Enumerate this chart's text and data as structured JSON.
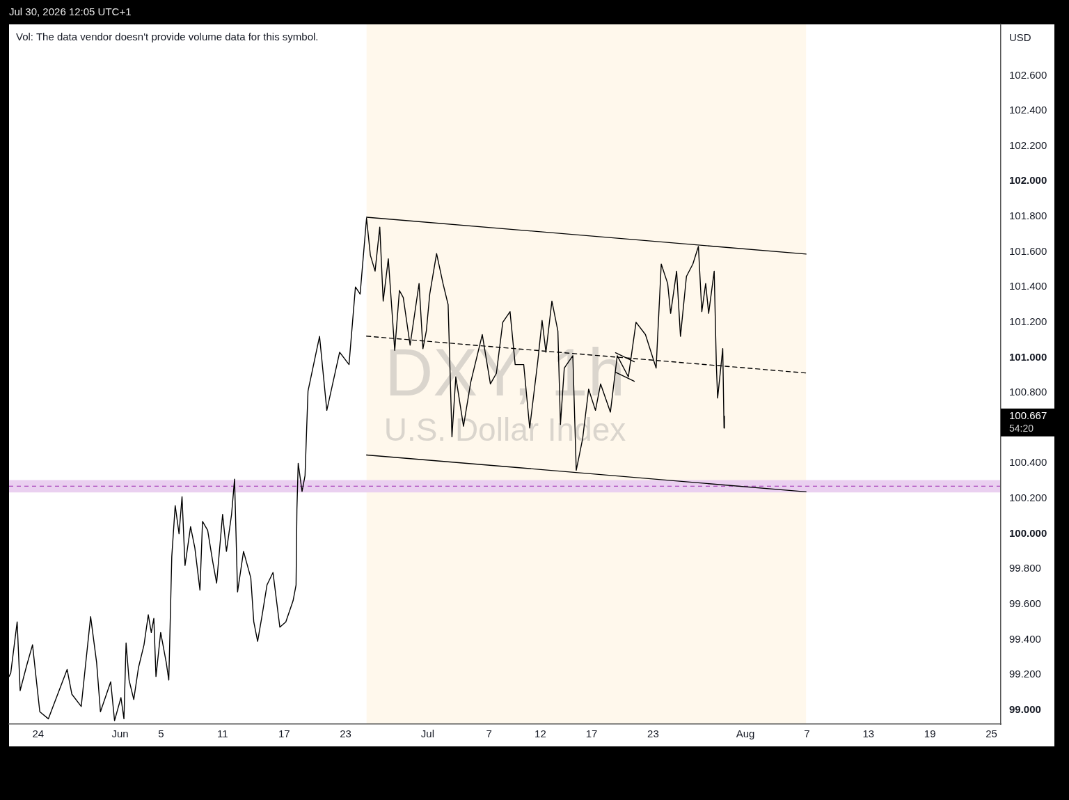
{
  "chart_data": {
    "type": "line",
    "title": "DXY, 1h",
    "subtitle": "U.S. Dollar Index",
    "ylabel": "USD",
    "annotations": [
      "Jul 30, 2026 12:05 UTC+1",
      "Vol: The data vendor doesn't provide volume data for this symbol.",
      "100.667",
      "54:20"
    ],
    "xlim": [
      "2026-05-21T04:00",
      "2026-08-25T22:00"
    ],
    "xticks": [
      {
        "value": "2026-05-24",
        "label": "24"
      },
      {
        "value": "2026-06-01",
        "label": "Jun"
      },
      {
        "value": "2026-06-05",
        "label": "5"
      },
      {
        "value": "2026-06-11",
        "label": "11"
      },
      {
        "value": "2026-06-17",
        "label": "17"
      },
      {
        "value": "2026-06-23",
        "label": "23"
      },
      {
        "value": "2026-07-01",
        "label": "Jul"
      },
      {
        "value": "2026-07-07",
        "label": "7"
      },
      {
        "value": "2026-07-12",
        "label": "12"
      },
      {
        "value": "2026-07-17",
        "label": "17"
      },
      {
        "value": "2026-07-23",
        "label": "23"
      },
      {
        "value": "2026-08-01",
        "label": "Aug"
      },
      {
        "value": "2026-08-07",
        "label": "7"
      },
      {
        "value": "2026-08-13",
        "label": "13"
      },
      {
        "value": "2026-08-19",
        "label": "19"
      },
      {
        "value": "2026-08-25",
        "label": "25"
      }
    ],
    "ylim": [
      98.92,
      102.89
    ],
    "yticks": [
      {
        "value": 99,
        "label": "99.000"
      },
      {
        "value": 99.2,
        "label": "99.200"
      },
      {
        "value": 99.4,
        "label": "99.400"
      },
      {
        "value": 99.6,
        "label": "99.600"
      },
      {
        "value": 99.8,
        "label": "99.800"
      },
      {
        "value": 100,
        "label": "100.000"
      },
      {
        "value": 100.2,
        "label": "100.200"
      },
      {
        "value": 100.4,
        "label": "100.400"
      },
      {
        "value": 100.8,
        "label": "100.800"
      },
      {
        "value": 101,
        "label": "101.000"
      },
      {
        "value": 101.2,
        "label": "101.200"
      },
      {
        "value": 101.4,
        "label": "101.400"
      },
      {
        "value": 101.6,
        "label": "101.600"
      },
      {
        "value": 101.8,
        "label": "101.800"
      },
      {
        "value": 102,
        "label": "102.000"
      },
      {
        "value": 102.2,
        "label": "102.200"
      },
      {
        "value": 102.4,
        "label": "102.400"
      },
      {
        "value": 102.6,
        "label": "102.600"
      }
    ],
    "bands": [
      {
        "axis": "x",
        "from": "2026-06-25T01:00",
        "to": "2026-08-06T22:00",
        "color": "#fff8ec"
      },
      {
        "axis": "y",
        "from": 100.234,
        "to": 100.305,
        "color": "#ead0f0"
      }
    ],
    "ref_lines": [
      {
        "axis": "y",
        "value": 100.27,
        "color": "#9c27b0",
        "line_style": "dashed"
      }
    ],
    "series": [
      {
        "type": "line",
        "color": "#000000",
        "line_style": "solid",
        "x": [
          "2026-05-21T04:00",
          "2026-05-21T08:00",
          "2026-05-21T23:00",
          "2026-05-22T06:00",
          "2026-05-22T21:00",
          "2026-05-23T11:00",
          "2026-05-23T19:00",
          "2026-05-24T04:00",
          "2026-05-25T00:00",
          "2026-05-26T20:00",
          "2026-05-27T07:00",
          "2026-05-28T05:00",
          "2026-05-28T14:00",
          "2026-05-29T03:00",
          "2026-05-29T17:00",
          "2026-05-30T02:00",
          "2026-05-31T02:00",
          "2026-05-31T11:00",
          "2026-06-01T02:00",
          "2026-06-01T09:00",
          "2026-06-01T14:00",
          "2026-06-01T21:00",
          "2026-06-02T08:00",
          "2026-06-02T19:00",
          "2026-06-03T08:00",
          "2026-06-03T18:00",
          "2026-06-04T01:00",
          "2026-06-04T07:00",
          "2026-06-04T12:00",
          "2026-06-04T23:00",
          "2026-06-05T12:00",
          "2026-06-05T18:00",
          "2026-06-06T01:00",
          "2026-06-06T09:00",
          "2026-06-06T18:00",
          "2026-06-07T01:00",
          "2026-06-07T08:00",
          "2026-06-07T21:00",
          "2026-06-08T07:00",
          "2026-06-08T19:00",
          "2026-06-09T01:00",
          "2026-06-09T13:00",
          "2026-06-10T01:00",
          "2026-06-10T10:00",
          "2026-06-11T00:00",
          "2026-06-11T09:00",
          "2026-06-11T21:00",
          "2026-06-12T04:00",
          "2026-06-12T11:00",
          "2026-06-13T01:00",
          "2026-06-13T18:00",
          "2026-06-14T01:00",
          "2026-06-14T10:00",
          "2026-06-14T20:00",
          "2026-06-15T08:00",
          "2026-06-15T22:00",
          "2026-06-16T14:00",
          "2026-06-17T04:00",
          "2026-06-17T21:00",
          "2026-06-18T04:00",
          "2026-06-18T06:00",
          "2026-06-18T09:00",
          "2026-06-18T18:00",
          "2026-06-19T01:00",
          "2026-06-19T05:00",
          "2026-06-19T08:00",
          "2026-06-20T11:00",
          "2026-06-21T04:00",
          "2026-06-22T10:00",
          "2026-06-23T08:00",
          "2026-06-23T23:00",
          "2026-06-24T10:00",
          "2026-06-25T01:00",
          "2026-06-25T10:00",
          "2026-06-25T21:00",
          "2026-06-26T08:00",
          "2026-06-26T16:00",
          "2026-06-27T04:00",
          "2026-06-27T19:00",
          "2026-06-28T06:00",
          "2026-06-28T15:00",
          "2026-06-29T07:00",
          "2026-06-30T04:00",
          "2026-06-30T13:00",
          "2026-06-30T21:00",
          "2026-07-01T05:00",
          "2026-07-01T21:00",
          "2026-07-02T12:00",
          "2026-07-03T00:00",
          "2026-07-03T09:00",
          "2026-07-03T18:00",
          "2026-07-04T12:00",
          "2026-07-05T05:00",
          "2026-07-06T08:00",
          "2026-07-07T03:00",
          "2026-07-07T17:00",
          "2026-07-08T08:00",
          "2026-07-09T01:00",
          "2026-07-09T13:00",
          "2026-07-10T09:00",
          "2026-07-10T23:00",
          "2026-07-11T18:00",
          "2026-07-12T04:00",
          "2026-07-12T13:00",
          "2026-07-13T03:00",
          "2026-07-13T17:00",
          "2026-07-13T23:00",
          "2026-07-14T08:00",
          "2026-07-15T04:00",
          "2026-07-15T12:00",
          "2026-07-15T17:00",
          "2026-07-16T03:00",
          "2026-07-16T17:00",
          "2026-07-17T09:00",
          "2026-07-17T21:00",
          "2026-07-18T20:00",
          "2026-07-19T12:00",
          "2026-07-20T14:00",
          "2026-07-21T08:00",
          "2026-07-22T06:00",
          "2026-07-23T07:00",
          "2026-07-23T19:00",
          "2026-07-24T10:00",
          "2026-07-24T17:00",
          "2026-07-25T07:00",
          "2026-07-25T16:00",
          "2026-07-26T06:00",
          "2026-07-26T21:00",
          "2026-07-27T10:00",
          "2026-07-27T18:00",
          "2026-07-28T03:00",
          "2026-07-28T10:00",
          "2026-07-28T23:00",
          "2026-07-29T04:00",
          "2026-07-29T07:00",
          "2026-07-29T19:00",
          "2026-07-29T22:00",
          "2026-07-29T23:00"
        ],
        "values": [
          99.19,
          99.21,
          99.5,
          99.11,
          99.25,
          99.37,
          99.19,
          98.99,
          98.95,
          99.23,
          99.09,
          99.02,
          99.23,
          99.53,
          99.27,
          98.99,
          99.16,
          98.94,
          99.07,
          98.95,
          99.38,
          99.17,
          99.06,
          99.24,
          99.37,
          99.54,
          99.44,
          99.52,
          99.19,
          99.44,
          99.27,
          99.17,
          99.87,
          100.16,
          100,
          100.21,
          99.82,
          100.04,
          99.92,
          99.68,
          100.07,
          100.02,
          99.84,
          99.72,
          100.11,
          99.9,
          100.11,
          100.31,
          99.67,
          99.9,
          99.75,
          99.5,
          99.39,
          99.53,
          99.71,
          99.78,
          99.47,
          99.5,
          99.62,
          99.71,
          100.14,
          100.4,
          100.24,
          100.33,
          100.61,
          100.81,
          101.12,
          100.7,
          101.03,
          100.96,
          101.4,
          101.36,
          101.79,
          101.58,
          101.49,
          101.74,
          101.32,
          101.56,
          101.04,
          101.38,
          101.34,
          101.07,
          101.42,
          101.05,
          101.15,
          101.36,
          101.59,
          101.42,
          101.3,
          100.55,
          100.89,
          100.61,
          100.86,
          101.13,
          100.85,
          100.91,
          101.2,
          101.26,
          100.96,
          100.96,
          100.6,
          100.98,
          101.21,
          101.03,
          101.32,
          101.15,
          100.62,
          100.94,
          101.01,
          100.36,
          100.42,
          100.54,
          100.82,
          100.7,
          100.85,
          100.69,
          101.01,
          100.89,
          101.2,
          101.13,
          100.94,
          101.53,
          101.42,
          101.25,
          101.49,
          101.12,
          101.46,
          101.53,
          101.63,
          101.26,
          101.42,
          101.25,
          101.49,
          100.96,
          100.77,
          101.05,
          100.6,
          100.667
        ]
      },
      {
        "type": "line",
        "color": "#000000",
        "line_style": "solid",
        "x": [
          "2026-06-25T01:00",
          "2026-08-06T22:00"
        ],
        "values": [
          101.796,
          101.587
        ]
      },
      {
        "type": "line",
        "color": "#000000",
        "line_style": "dashed",
        "x": [
          "2026-06-25T01:00",
          "2026-08-06T22:00"
        ],
        "values": [
          101.121,
          100.912
        ]
      },
      {
        "type": "line",
        "color": "#000000",
        "line_style": "solid",
        "x": [
          "2026-06-25T01:00",
          "2026-08-06T22:00"
        ],
        "values": [
          100.447,
          100.238
        ]
      },
      {
        "type": "line",
        "color": "#000000",
        "line_style": "solid",
        "x": [
          "2026-07-19T08:00",
          "2026-07-21T04:00"
        ],
        "values": [
          101.027,
          100.976
        ]
      },
      {
        "type": "line",
        "color": "#000000",
        "line_style": "solid",
        "x": [
          "2026-07-19T08:00",
          "2026-07-21T04:00"
        ],
        "values": [
          100.916,
          100.865
        ]
      }
    ]
  }
}
